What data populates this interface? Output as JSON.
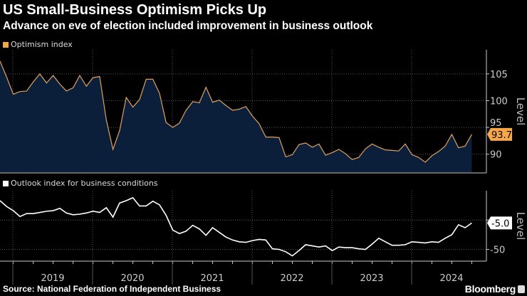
{
  "title": "US Small-Business Optimism Picks Up",
  "subtitle": "Advance on eve of election included improvement in business outlook",
  "source": "Source: National Federation of Independent Business",
  "brand": "Bloomberg",
  "colors": {
    "optimism_line": "#e0a25c",
    "optimism_fill": "#0b1f3b",
    "optimism_label": "#f7a64a",
    "outlook_line": "#ffffff",
    "background": "#000000"
  },
  "chart_data": [
    {
      "type": "area",
      "legend": "Optimism index",
      "ylabel": "Level",
      "x_start": "2018-11",
      "x_end": "2024-10",
      "frequency": "monthly",
      "x_ticks": [
        "2019",
        "2020",
        "2021",
        "2022",
        "2023",
        "2024"
      ],
      "y_ticks": [
        90,
        95,
        100,
        105
      ],
      "ylim": [
        86.5,
        109.5
      ],
      "last_value_label": "93.7",
      "grid": true,
      "values": [
        107.4,
        104.4,
        101.2,
        101.7,
        101.8,
        103.5,
        105.0,
        103.3,
        104.7,
        103.1,
        101.8,
        102.4,
        104.7,
        102.7,
        104.3,
        104.5,
        96.4,
        90.9,
        94.4,
        100.6,
        98.8,
        100.2,
        104.0,
        104.0,
        101.4,
        95.9,
        95.0,
        95.8,
        98.2,
        99.8,
        99.6,
        102.5,
        99.7,
        100.1,
        99.1,
        98.2,
        98.4,
        98.9,
        97.1,
        95.7,
        93.2,
        93.2,
        93.1,
        89.5,
        89.9,
        91.8,
        92.1,
        91.3,
        91.9,
        89.8,
        90.3,
        90.9,
        90.1,
        89.0,
        89.4,
        91.0,
        91.9,
        91.3,
        90.8,
        90.7,
        90.6,
        91.9,
        89.9,
        89.4,
        88.5,
        89.7,
        90.5,
        91.5,
        93.7,
        91.2,
        91.5,
        93.7
      ]
    },
    {
      "type": "line",
      "legend": "Outlook index for business conditions",
      "ylabel": "Level",
      "x_start": "2018-11",
      "x_end": "2024-10",
      "frequency": "monthly",
      "x_ticks": [
        "2019",
        "2020",
        "2021",
        "2022",
        "2023",
        "2024"
      ],
      "y_ticks": [
        0,
        -50
      ],
      "y_tick_labels": [
        "-50"
      ],
      "ylim": [
        -70,
        50
      ],
      "last_value_label": "-5.0",
      "grid": true,
      "values": [
        33,
        23,
        16,
        6,
        11,
        11,
        13,
        15,
        16,
        20,
        12,
        9,
        10,
        12,
        15,
        13,
        21,
        5,
        29,
        33,
        38,
        24,
        24,
        32,
        26,
        8,
        -17,
        -23,
        -19,
        -9,
        -15,
        -26,
        -13,
        -21,
        -29,
        -34,
        -37,
        -38,
        -35,
        -33,
        -34,
        -49,
        -50,
        -54,
        -61,
        -52,
        -42,
        -44,
        -46,
        -44,
        -52,
        -46,
        -47,
        -47,
        -49,
        -50,
        -41,
        -31,
        -37,
        -43,
        -43,
        -42,
        -37,
        -38,
        -39,
        -37,
        -38,
        -31,
        -25,
        -8,
        -13,
        -5
      ]
    }
  ]
}
